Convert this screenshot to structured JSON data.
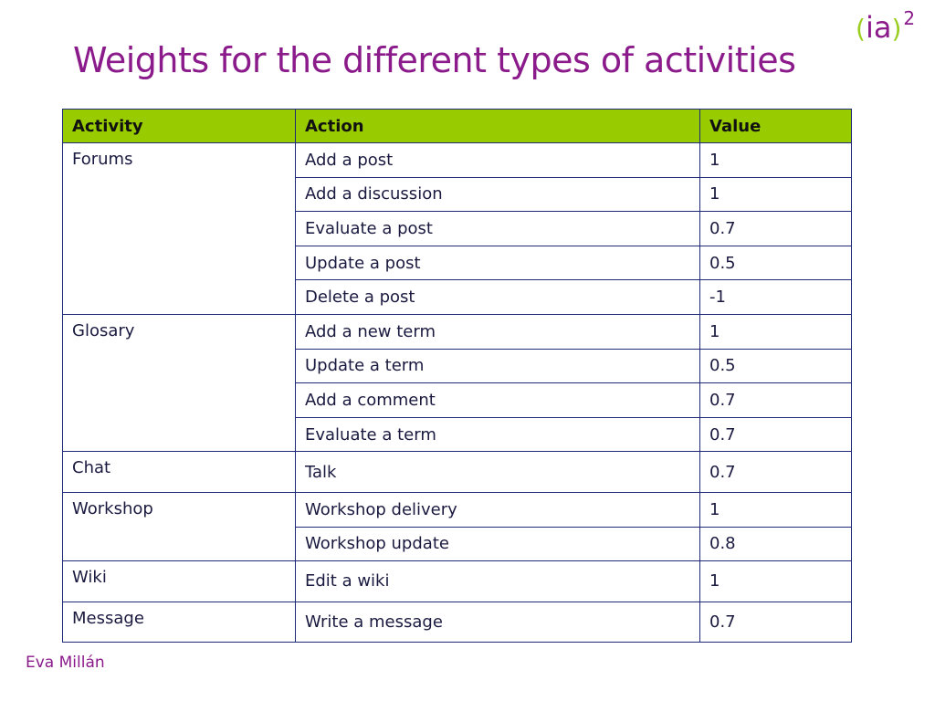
{
  "slide": {
    "title": "Weights for the different types of activities",
    "author": "Eva Millán"
  },
  "logo": {
    "open_paren": "(",
    "text": "ia",
    "close_paren": ")",
    "exponent": "2"
  },
  "table": {
    "headers": [
      "Activity",
      "Action",
      "Value"
    ],
    "groups": [
      {
        "activity": "Forums",
        "rows": [
          {
            "action": "Add a post",
            "value": "1"
          },
          {
            "action": "Add a discussion",
            "value": "1"
          },
          {
            "action": "Evaluate a post",
            "value": "0.7"
          },
          {
            "action": "Update a post",
            "value": "0.5"
          },
          {
            "action": "Delete a  post",
            "value": "-1"
          }
        ]
      },
      {
        "activity": "Glosary",
        "rows": [
          {
            "action": "Add a new term",
            "value": "1"
          },
          {
            "action": "Update a term",
            "value": "0.5"
          },
          {
            "action": "Add a comment",
            "value": "0.7"
          },
          {
            "action": "Evaluate a term",
            "value": "0.7"
          }
        ]
      },
      {
        "activity": "Chat",
        "rows": [
          {
            "action": "Talk",
            "value": "0.7"
          }
        ]
      },
      {
        "activity": "Workshop",
        "rows": [
          {
            "action": "Workshop delivery",
            "value": "1"
          },
          {
            "action": "Workshop update",
            "value": "0.8"
          }
        ]
      },
      {
        "activity": "Wiki",
        "rows": [
          {
            "action": "Edit a wiki",
            "value": "1"
          }
        ]
      },
      {
        "activity": "Message",
        "rows": [
          {
            "action": "Write a message",
            "value": "0.7"
          }
        ]
      }
    ]
  },
  "colors": {
    "title": "#8b1a8b",
    "header_bg": "#99cc00",
    "border": "#1e2a78",
    "logo_paren": "#9acd1e"
  }
}
